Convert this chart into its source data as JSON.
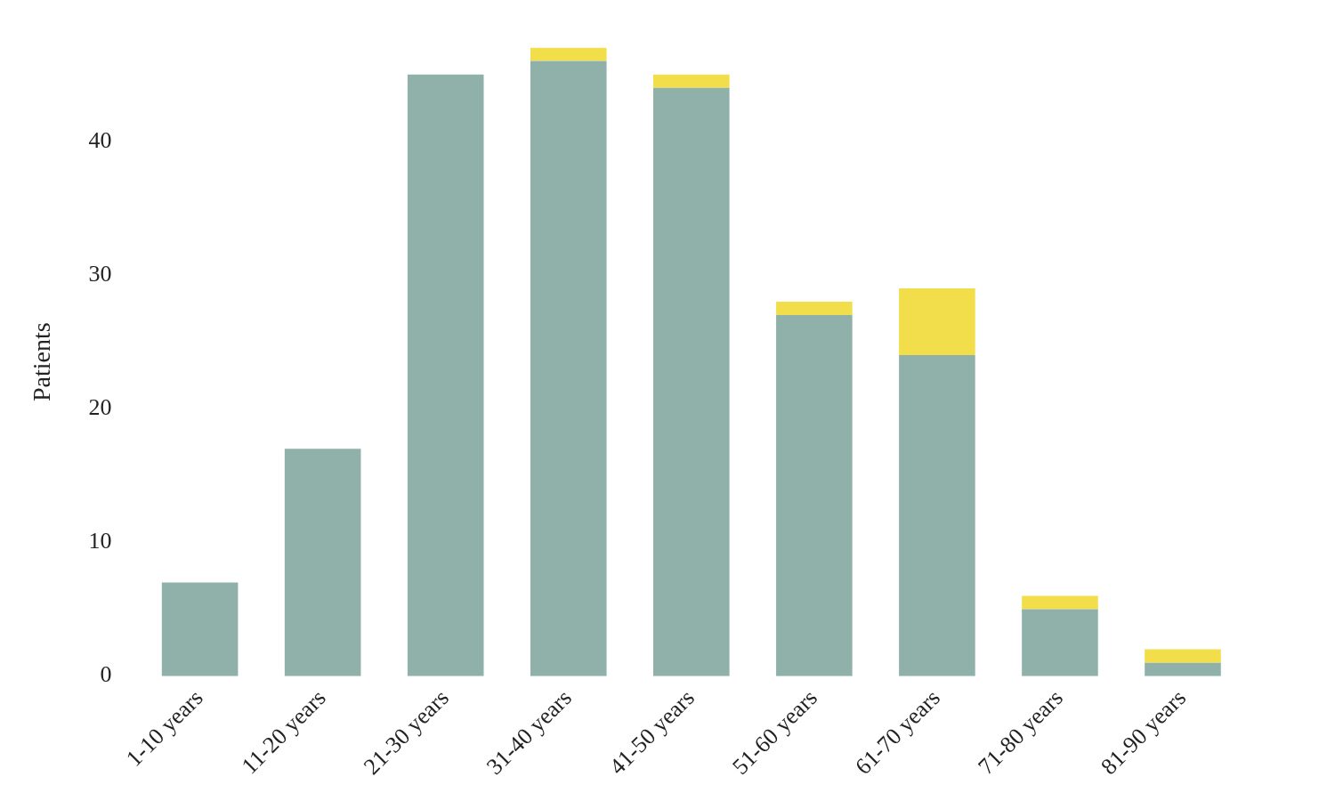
{
  "chart_data": {
    "type": "bar",
    "stacked": true,
    "ylabel": "Patients",
    "categories": [
      "1-10 years",
      "11-20 years",
      "21-30 years",
      "31-40 years",
      "41-50 years",
      "51-60 years",
      "61-70 years",
      "71-80 years",
      "81-90 years"
    ],
    "series": [
      {
        "color": "#8fb1aa",
        "values": [
          7,
          17,
          45,
          46,
          44,
          27,
          24,
          5,
          1
        ]
      },
      {
        "color": "#f2de4b",
        "values": [
          0,
          0,
          0,
          1,
          1,
          1,
          5,
          1,
          1
        ]
      }
    ],
    "ylim": [
      0,
      47
    ],
    "yticks": [
      0,
      10,
      20,
      30,
      40
    ],
    "grid": false,
    "legend": false
  }
}
